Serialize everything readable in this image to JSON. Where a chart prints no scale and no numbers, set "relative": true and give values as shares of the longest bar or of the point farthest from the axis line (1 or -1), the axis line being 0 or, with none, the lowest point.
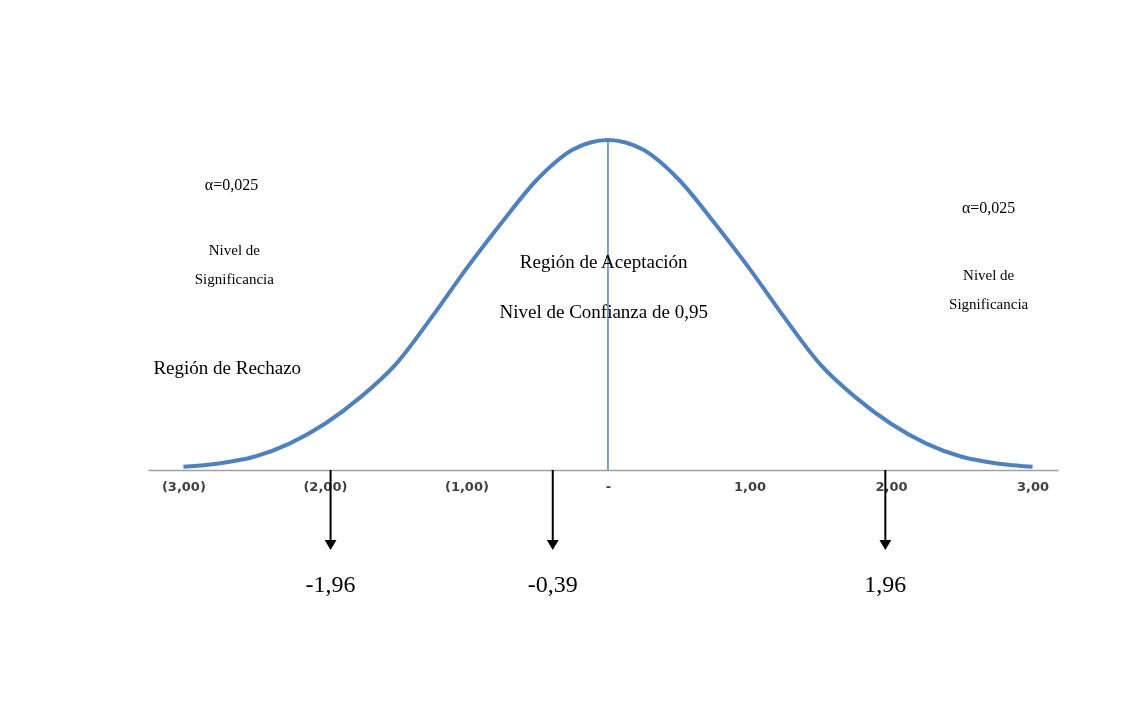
{
  "chart_data": {
    "type": "line",
    "relative": true,
    "x": [
      -3,
      -2.75,
      -2.5,
      -2.25,
      -2,
      -1.75,
      -1.5,
      -1.25,
      -1,
      -0.75,
      -0.5,
      -0.25,
      0,
      0.25,
      0.5,
      0.75,
      1,
      1.25,
      1.5,
      1.75,
      2,
      2.25,
      2.5,
      2.75,
      3
    ],
    "series": [
      {
        "color": "#4f81bd",
        "values": [
          0.01,
          0.02,
          0.04,
          0.08,
          0.14,
          0.22,
          0.32,
          0.46,
          0.61,
          0.75,
          0.88,
          0.97,
          1,
          0.97,
          0.88,
          0.75,
          0.61,
          0.46,
          0.32,
          0.22,
          0.14,
          0.08,
          0.04,
          0.02,
          0.01
        ]
      }
    ],
    "xlim": [
      -3.25,
      3.18
    ],
    "xticks": [
      {
        "value": -3,
        "label": "(3,00)"
      },
      {
        "value": -2,
        "label": "(2,00)"
      },
      {
        "value": -1,
        "label": "(1,00)"
      },
      {
        "value": 0,
        "label": "-"
      },
      {
        "value": 1,
        "label": "1,00"
      },
      {
        "value": 2,
        "label": "2,00"
      },
      {
        "value": 3,
        "label": "3,00"
      }
    ],
    "ref_lines": [
      {
        "axis": "x",
        "value": 0,
        "color": "#4f81bd"
      },
      {
        "axis": "x",
        "value": -1.96,
        "label": "-1,96",
        "color": "#000000"
      },
      {
        "axis": "x",
        "value": -0.39,
        "label": "-0,39",
        "color": "#000000"
      },
      {
        "axis": "x",
        "value": 1.96,
        "label": "1,96",
        "color": "#000000"
      }
    ],
    "annotations": [
      "α=0,025",
      "Nivel de Significancia",
      "Región de Rechazo",
      "Región de Aceptación",
      "Nivel de Confianza de 0,95",
      "α=0,025",
      "Nivel de Significancia"
    ],
    "grid": false,
    "marker": "none",
    "line_style": "solid"
  }
}
